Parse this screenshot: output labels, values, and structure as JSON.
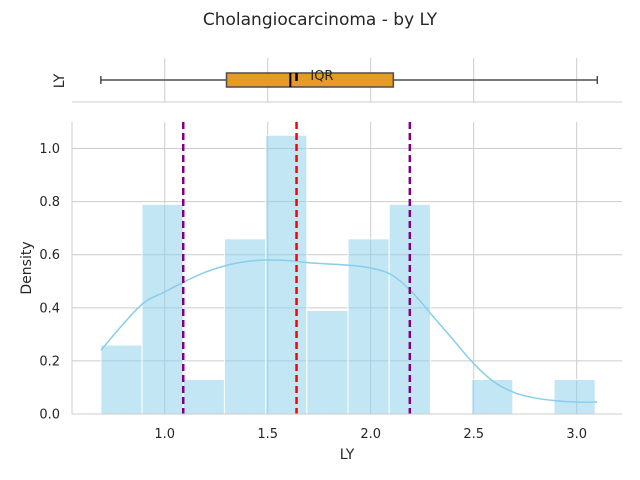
{
  "title": "Cholangiocarcinoma - by LY",
  "colors": {
    "histogram_fill": "#87ceeb",
    "kde_line": "#87ceeb",
    "box_fill": "#e69c24",
    "mean_line": "#ff0000",
    "std_line": "#800080",
    "grid": "#cccccc"
  },
  "chart_data": [
    {
      "type": "box",
      "orientation": "horizontal",
      "ylabel": "LY",
      "whisker_low": 0.69,
      "q1": 1.3,
      "median": 1.61,
      "mean": 1.64,
      "q3": 2.11,
      "whisker_high": 3.1,
      "annotation": "IQR",
      "xlim": [
        0.55,
        3.22
      ],
      "grid": true
    },
    {
      "type": "bar",
      "subtype": "histogram_with_kde",
      "xlabel": "LY",
      "ylabel": "Density",
      "xlim": [
        0.55,
        3.22
      ],
      "ylim": [
        0,
        1.1
      ],
      "xticks": [
        "1.0",
        "1.5",
        "2.0",
        "2.5",
        "3.0"
      ],
      "yticks": [
        "0.0",
        "0.2",
        "0.4",
        "0.6",
        "0.8",
        "1.0"
      ],
      "bin_width": 0.2,
      "bins": [
        {
          "x0": 0.69,
          "value": 0.26
        },
        {
          "x0": 0.89,
          "value": 0.79
        },
        {
          "x0": 1.09,
          "value": 0.13
        },
        {
          "x0": 1.29,
          "value": 0.66
        },
        {
          "x0": 1.49,
          "value": 1.05
        },
        {
          "x0": 1.69,
          "value": 0.39
        },
        {
          "x0": 1.89,
          "value": 0.66
        },
        {
          "x0": 2.09,
          "value": 0.79
        },
        {
          "x0": 2.29,
          "value": 0.0
        },
        {
          "x0": 2.49,
          "value": 0.13
        },
        {
          "x0": 2.69,
          "value": 0.0
        },
        {
          "x0": 2.89,
          "value": 0.13
        }
      ],
      "kde": {
        "x": [
          0.69,
          0.8,
          0.9,
          1.0,
          1.1,
          1.2,
          1.3,
          1.4,
          1.5,
          1.6,
          1.7,
          1.8,
          1.9,
          2.0,
          2.1,
          2.2,
          2.3,
          2.4,
          2.5,
          2.6,
          2.7,
          2.8,
          2.9,
          3.0,
          3.1
        ],
        "y": [
          0.24,
          0.34,
          0.42,
          0.46,
          0.5,
          0.535,
          0.56,
          0.575,
          0.58,
          0.578,
          0.57,
          0.565,
          0.56,
          0.55,
          0.525,
          0.46,
          0.37,
          0.28,
          0.19,
          0.12,
          0.08,
          0.06,
          0.05,
          0.045,
          0.045
        ]
      },
      "vlines": [
        {
          "x": 1.64,
          "kind": "mean"
        },
        {
          "x": 1.09,
          "kind": "minus_std"
        },
        {
          "x": 2.19,
          "kind": "plus_std"
        }
      ],
      "grid": true
    }
  ]
}
